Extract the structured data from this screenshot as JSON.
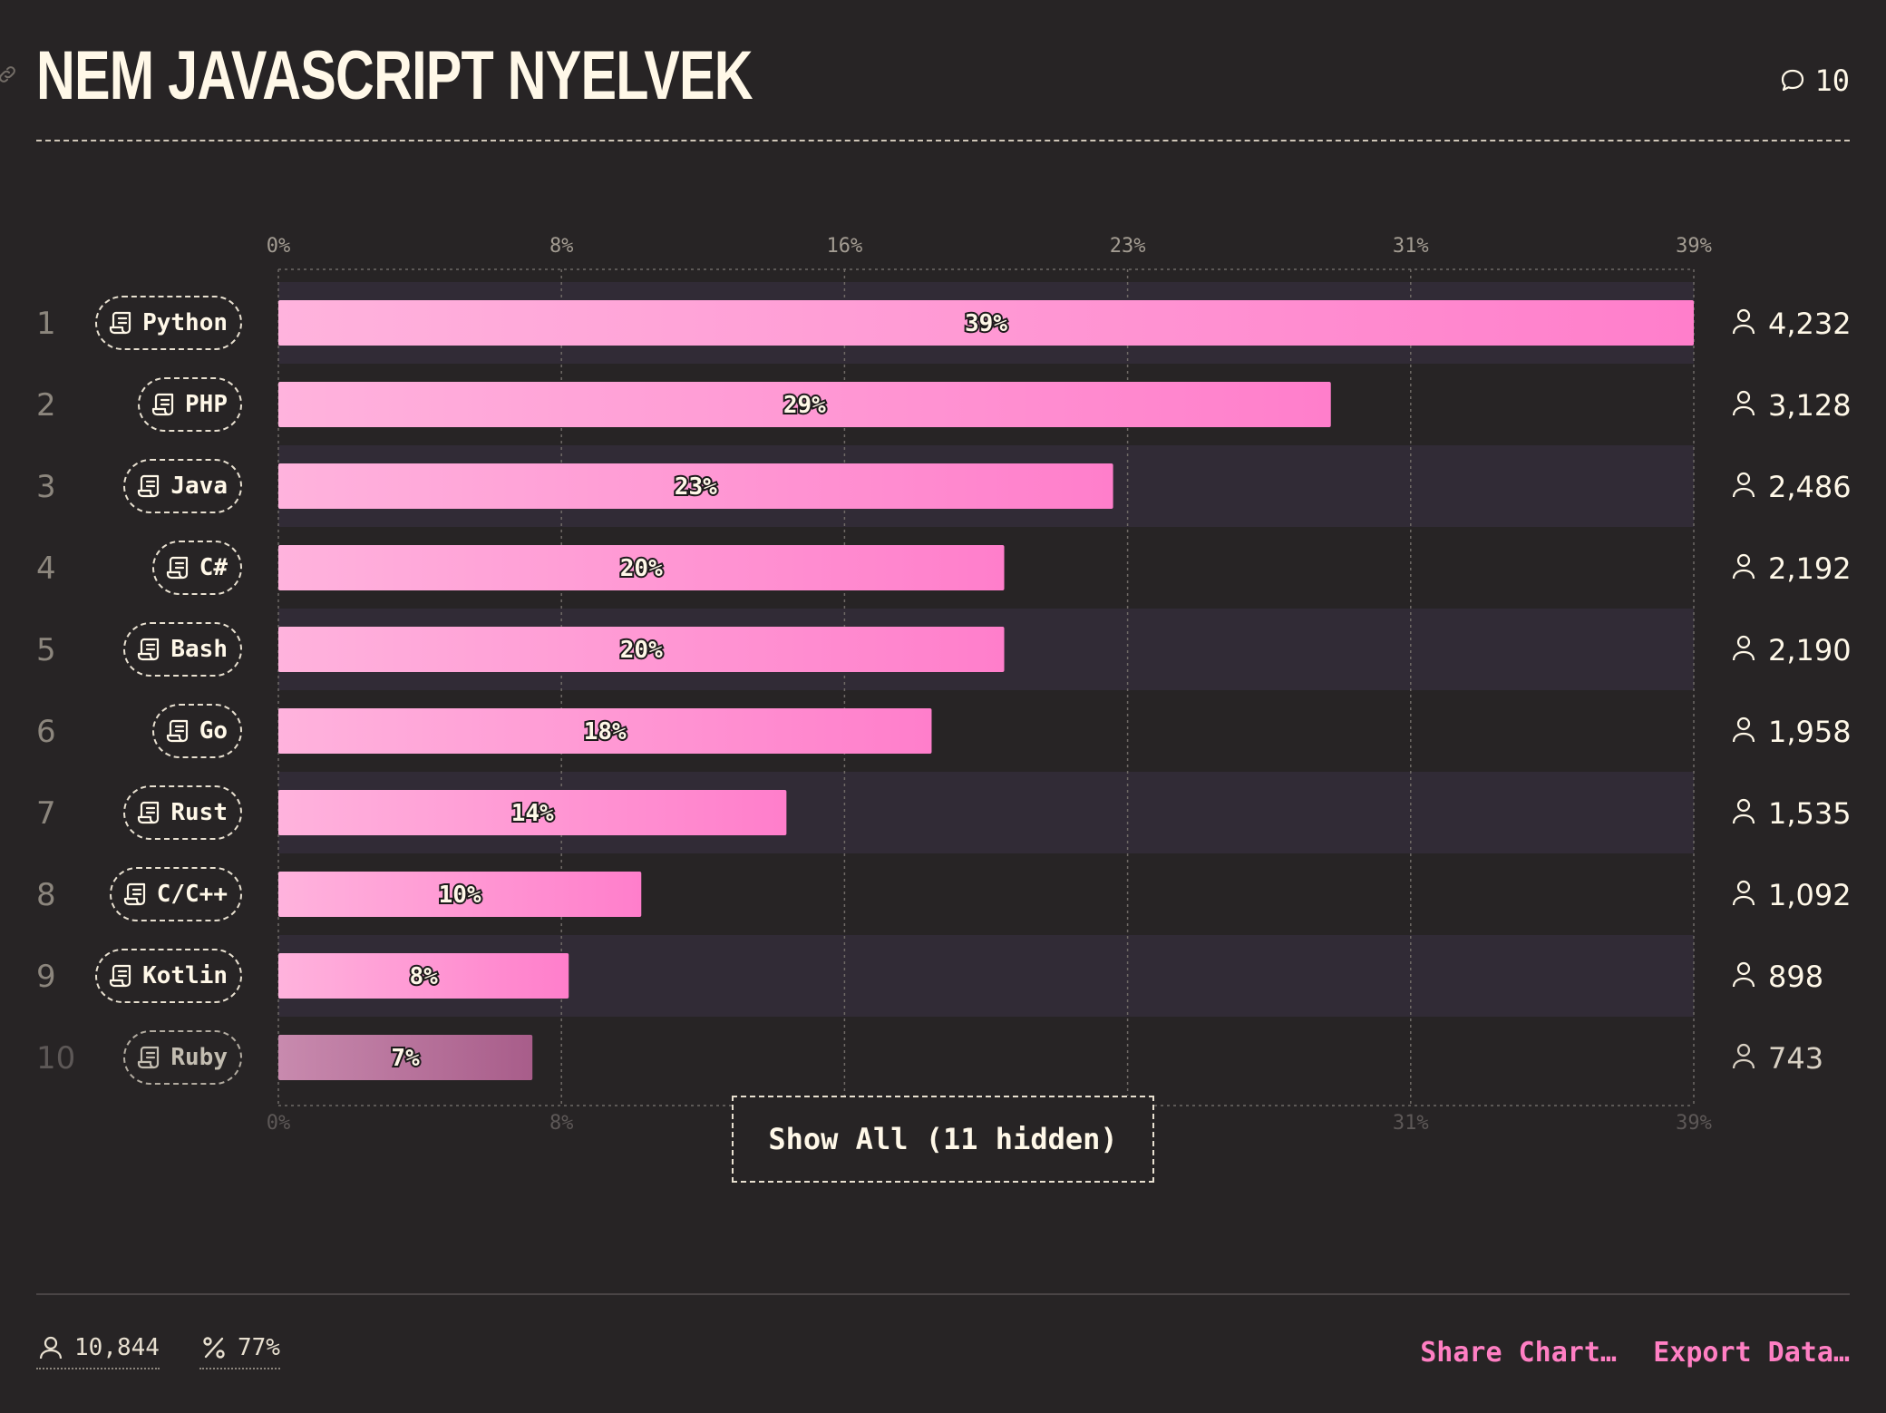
{
  "header": {
    "title": "NEM JAVASCRIPT NYELVEK",
    "comment_count": "10"
  },
  "chart_data": {
    "type": "bar",
    "orientation": "horizontal",
    "x_ticks": [
      "0%",
      "8%",
      "16%",
      "23%",
      "31%",
      "39%"
    ],
    "xlim": [
      0,
      39
    ],
    "grid": true,
    "categories": [
      "Python",
      "PHP",
      "Java",
      "C#",
      "Bash",
      "Go",
      "Rust",
      "C/C++",
      "Kotlin",
      "Ruby"
    ],
    "ranks": [
      "1",
      "2",
      "3",
      "4",
      "5",
      "6",
      "7",
      "8",
      "9",
      "10"
    ],
    "values": [
      39,
      29,
      23,
      20,
      20,
      18,
      14,
      10,
      8,
      7
    ],
    "value_labels": [
      "39%",
      "29%",
      "23%",
      "20%",
      "20%",
      "18%",
      "14%",
      "10%",
      "8%",
      "7%"
    ],
    "counts": [
      "4,232",
      "3,128",
      "2,486",
      "2,192",
      "2,190",
      "1,958",
      "1,535",
      "1,092",
      "898",
      "743"
    ],
    "colors": {
      "bar_start": "#ffb3dd",
      "bar_end": "#ff7ecb",
      "bar_muted": "#b26e95",
      "row_alt": "#312b36"
    }
  },
  "show_all_label": "Show All (11 hidden)",
  "footer": {
    "respondents": "10,844",
    "percentage": "77%",
    "share_label": "Share Chart…",
    "export_label": "Export Data…"
  }
}
